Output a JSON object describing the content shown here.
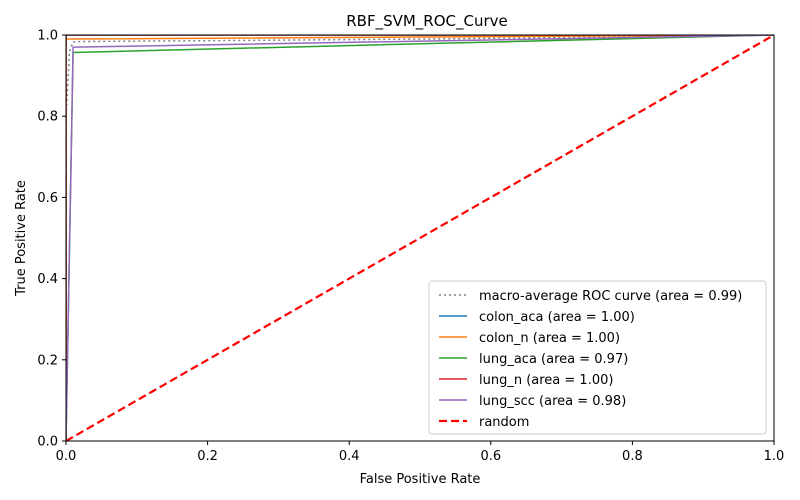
{
  "chart_data": {
    "type": "line",
    "title": "RBF_SVM_ROC_Curve",
    "xlabel": "False Positive Rate",
    "ylabel": "True Positive Rate",
    "xlim": [
      0.0,
      1.0
    ],
    "ylim": [
      0.0,
      1.0
    ],
    "xticks": [
      "0.0",
      "0.2",
      "0.4",
      "0.6",
      "0.8",
      "1.0"
    ],
    "yticks": [
      "0.0",
      "0.2",
      "0.4",
      "0.6",
      "0.8",
      "1.0"
    ],
    "legend_position": "lower-right",
    "grid": false,
    "series": [
      {
        "name": "macro-average ROC curve (area = 0.99)",
        "color": "#808080",
        "style": "dotted",
        "x": [
          0.0,
          0.0,
          0.005,
          0.01,
          0.02,
          0.2,
          0.5,
          1.0
        ],
        "y": [
          0.0,
          0.8,
          0.96,
          0.983,
          0.984,
          0.986,
          0.99,
          1.0
        ]
      },
      {
        "name": "colon_aca (area = 1.00)",
        "color": "#1f77b4",
        "style": "solid",
        "x": [
          0.0,
          0.0,
          1.0
        ],
        "y": [
          0.0,
          1.0,
          1.0
        ]
      },
      {
        "name": "colon_n (area = 1.00)",
        "color": "#ff7f0e",
        "style": "solid",
        "x": [
          0.0,
          0.0,
          0.005,
          1.0
        ],
        "y": [
          0.0,
          0.99,
          0.99,
          1.0
        ]
      },
      {
        "name": "lung_aca (area = 0.97)",
        "color": "#2ca02c",
        "style": "solid",
        "x": [
          0.0,
          0.0,
          0.01,
          1.0
        ],
        "y": [
          0.0,
          0.0,
          0.957,
          1.0
        ]
      },
      {
        "name": "lung_n (area = 1.00)",
        "color": "#d62728",
        "style": "solid",
        "x": [
          0.0,
          0.0,
          1.0
        ],
        "y": [
          0.0,
          1.0,
          1.0
        ]
      },
      {
        "name": "lung_scc (area = 0.98)",
        "color": "#9467bd",
        "style": "solid",
        "x": [
          0.0,
          0.0,
          0.01,
          1.0
        ],
        "y": [
          0.0,
          0.0,
          0.97,
          1.0
        ]
      },
      {
        "name": "random",
        "color": "#ff0000",
        "style": "dashed",
        "x": [
          0.0,
          1.0
        ],
        "y": [
          0.0,
          1.0
        ]
      }
    ]
  }
}
